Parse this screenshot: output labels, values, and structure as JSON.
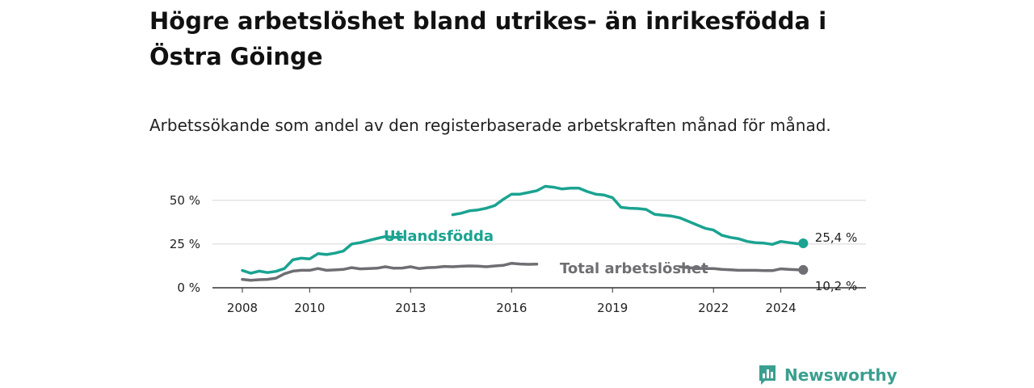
{
  "title": "Högre arbetslöshet bland utrikes- än inrikesfödda i Östra Göinge",
  "subtitle": "Arbetssökande som andel av den registerbaserade arbetskraften månad för månad.",
  "brand": {
    "name": "Newsworthy",
    "icon": "newsworthy-logo-icon",
    "color": "#3a9f8f"
  },
  "chart_data": {
    "type": "line",
    "x_type": "date",
    "xlim": [
      "2008-01",
      "2025-09"
    ],
    "ylim": [
      0,
      55
    ],
    "grid": true,
    "y_ticks": [
      {
        "value": 0,
        "label": "0 %"
      },
      {
        "value": 25,
        "label": "25 %"
      },
      {
        "value": 50,
        "label": "50 %"
      }
    ],
    "x_ticks": [
      {
        "value": "2008-01",
        "label": "2008"
      },
      {
        "value": "2010-01",
        "label": "2010"
      },
      {
        "value": "2013-01",
        "label": "2013"
      },
      {
        "value": "2016-01",
        "label": "2016"
      },
      {
        "value": "2019-01",
        "label": "2019"
      },
      {
        "value": "2022-01",
        "label": "2022"
      },
      {
        "value": "2024-01",
        "label": "2024"
      }
    ],
    "series": [
      {
        "name": "Utlandsfödda",
        "color": "#1aa391",
        "end_label": "25,4 %",
        "points": [
          [
            "2008-01",
            9.9
          ],
          [
            "2008-04",
            8.3
          ],
          [
            "2008-07",
            9.5
          ],
          [
            "2008-10",
            8.7
          ],
          [
            "2009-01",
            9.4
          ],
          [
            "2009-04",
            11.0
          ],
          [
            "2009-07",
            16.0
          ],
          [
            "2009-10",
            16.9
          ],
          [
            "2010-01",
            16.5
          ],
          [
            "2010-04",
            19.5
          ],
          [
            "2010-07",
            19.0
          ],
          [
            "2010-10",
            19.8
          ],
          [
            "2011-01",
            21.0
          ],
          [
            "2011-04",
            25.0
          ],
          [
            "2011-07",
            25.8
          ],
          [
            "2011-10",
            27.0
          ],
          [
            "2012-01",
            28.2
          ],
          [
            "2012-04",
            29.3
          ],
          [
            "2012-07",
            28.8
          ],
          [
            "2012-10",
            29.0
          ],
          [
            "2014-04",
            41.8
          ],
          [
            "2014-07",
            42.6
          ],
          [
            "2014-10",
            44.0
          ],
          [
            "2015-01",
            44.5
          ],
          [
            "2015-04",
            45.5
          ],
          [
            "2015-07",
            47.0
          ],
          [
            "2015-10",
            50.5
          ],
          [
            "2016-01",
            53.5
          ],
          [
            "2016-04",
            53.5
          ],
          [
            "2016-07",
            54.5
          ],
          [
            "2016-10",
            55.5
          ],
          [
            "2017-01",
            58.0
          ],
          [
            "2017-04",
            57.5
          ],
          [
            "2017-07",
            56.5
          ],
          [
            "2017-10",
            57.0
          ],
          [
            "2018-01",
            57.0
          ],
          [
            "2018-04",
            55.0
          ],
          [
            "2018-07",
            53.5
          ],
          [
            "2018-10",
            53.0
          ],
          [
            "2019-01",
            51.5
          ],
          [
            "2019-04",
            46.0
          ],
          [
            "2019-07",
            45.5
          ],
          [
            "2019-10",
            45.3
          ],
          [
            "2020-01",
            44.8
          ],
          [
            "2020-04",
            42.0
          ],
          [
            "2020-07",
            41.5
          ],
          [
            "2020-10",
            41.0
          ],
          [
            "2021-01",
            40.0
          ],
          [
            "2021-04",
            38.0
          ],
          [
            "2021-07",
            36.0
          ],
          [
            "2021-10",
            34.0
          ],
          [
            "2022-01",
            33.0
          ],
          [
            "2022-04",
            30.0
          ],
          [
            "2022-07",
            28.8
          ],
          [
            "2022-10",
            28.0
          ],
          [
            "2023-01",
            26.5
          ],
          [
            "2023-04",
            25.8
          ],
          [
            "2023-07",
            25.5
          ],
          [
            "2023-10",
            24.8
          ],
          [
            "2024-01",
            26.5
          ],
          [
            "2024-04",
            25.8
          ],
          [
            "2024-07",
            25.2
          ],
          [
            "2024-09",
            25.4
          ]
        ]
      },
      {
        "name": "Total arbetslöshet",
        "color": "#6e6e73",
        "end_label": "10,2 %",
        "points": [
          [
            "2008-01",
            4.8
          ],
          [
            "2008-04",
            4.3
          ],
          [
            "2008-07",
            4.6
          ],
          [
            "2008-10",
            4.8
          ],
          [
            "2009-01",
            5.5
          ],
          [
            "2009-04",
            8.0
          ],
          [
            "2009-07",
            9.5
          ],
          [
            "2009-10",
            10.0
          ],
          [
            "2010-01",
            10.0
          ],
          [
            "2010-04",
            11.0
          ],
          [
            "2010-07",
            10.0
          ],
          [
            "2010-10",
            10.2
          ],
          [
            "2011-01",
            10.5
          ],
          [
            "2011-04",
            11.5
          ],
          [
            "2011-07",
            10.8
          ],
          [
            "2011-10",
            11.0
          ],
          [
            "2012-01",
            11.2
          ],
          [
            "2012-04",
            12.0
          ],
          [
            "2012-07",
            11.2
          ],
          [
            "2012-10",
            11.3
          ],
          [
            "2013-01",
            12.0
          ],
          [
            "2013-04",
            11.0
          ],
          [
            "2013-07",
            11.5
          ],
          [
            "2013-10",
            11.7
          ],
          [
            "2014-01",
            12.2
          ],
          [
            "2014-04",
            12.0
          ],
          [
            "2014-07",
            12.3
          ],
          [
            "2014-10",
            12.5
          ],
          [
            "2015-01",
            12.4
          ],
          [
            "2015-04",
            12.0
          ],
          [
            "2015-07",
            12.5
          ],
          [
            "2015-10",
            12.8
          ],
          [
            "2016-01",
            14.0
          ],
          [
            "2016-04",
            13.6
          ],
          [
            "2016-07",
            13.4
          ],
          [
            "2016-10",
            13.5
          ],
          [
            "2021-01",
            12.0
          ],
          [
            "2021-04",
            11.5
          ],
          [
            "2021-07",
            11.2
          ],
          [
            "2021-10",
            11.0
          ],
          [
            "2022-01",
            11.0
          ],
          [
            "2022-04",
            10.5
          ],
          [
            "2022-07",
            10.3
          ],
          [
            "2022-10",
            10.0
          ],
          [
            "2023-01",
            10.0
          ],
          [
            "2023-04",
            10.0
          ],
          [
            "2023-07",
            9.8
          ],
          [
            "2023-10",
            9.8
          ],
          [
            "2024-01",
            10.8
          ],
          [
            "2024-04",
            10.5
          ],
          [
            "2024-07",
            10.3
          ],
          [
            "2024-09",
            10.2
          ]
        ]
      }
    ]
  }
}
